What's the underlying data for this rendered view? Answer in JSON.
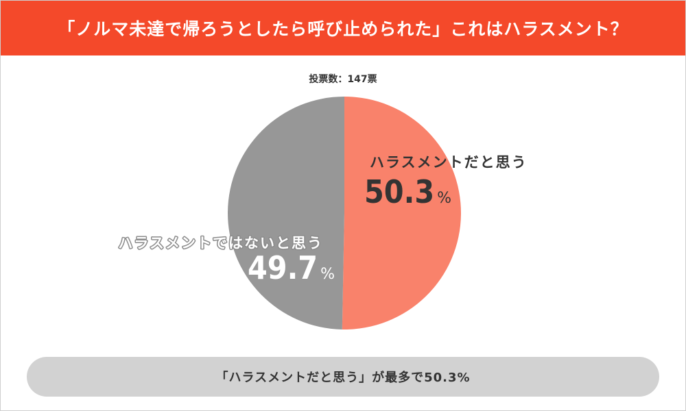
{
  "header": {
    "title": "「ノルマ未達で帰ろうとしたら呼び止められた」これはハラスメント？"
  },
  "chart_data": {
    "type": "pie",
    "title": "",
    "subtitle": "投票数：147票",
    "slices": [
      {
        "name": "ハラスメントだと思う",
        "value": 50.3,
        "value_label": "50.3",
        "unit": "%",
        "color": "#f9826b"
      },
      {
        "name": "ハラスメントではないと思う",
        "value": 49.7,
        "value_label": "49.7",
        "unit": "%",
        "color": "#979797"
      }
    ]
  },
  "footer": {
    "summary": "「ハラスメントだと思う」が最多で50.3%"
  }
}
